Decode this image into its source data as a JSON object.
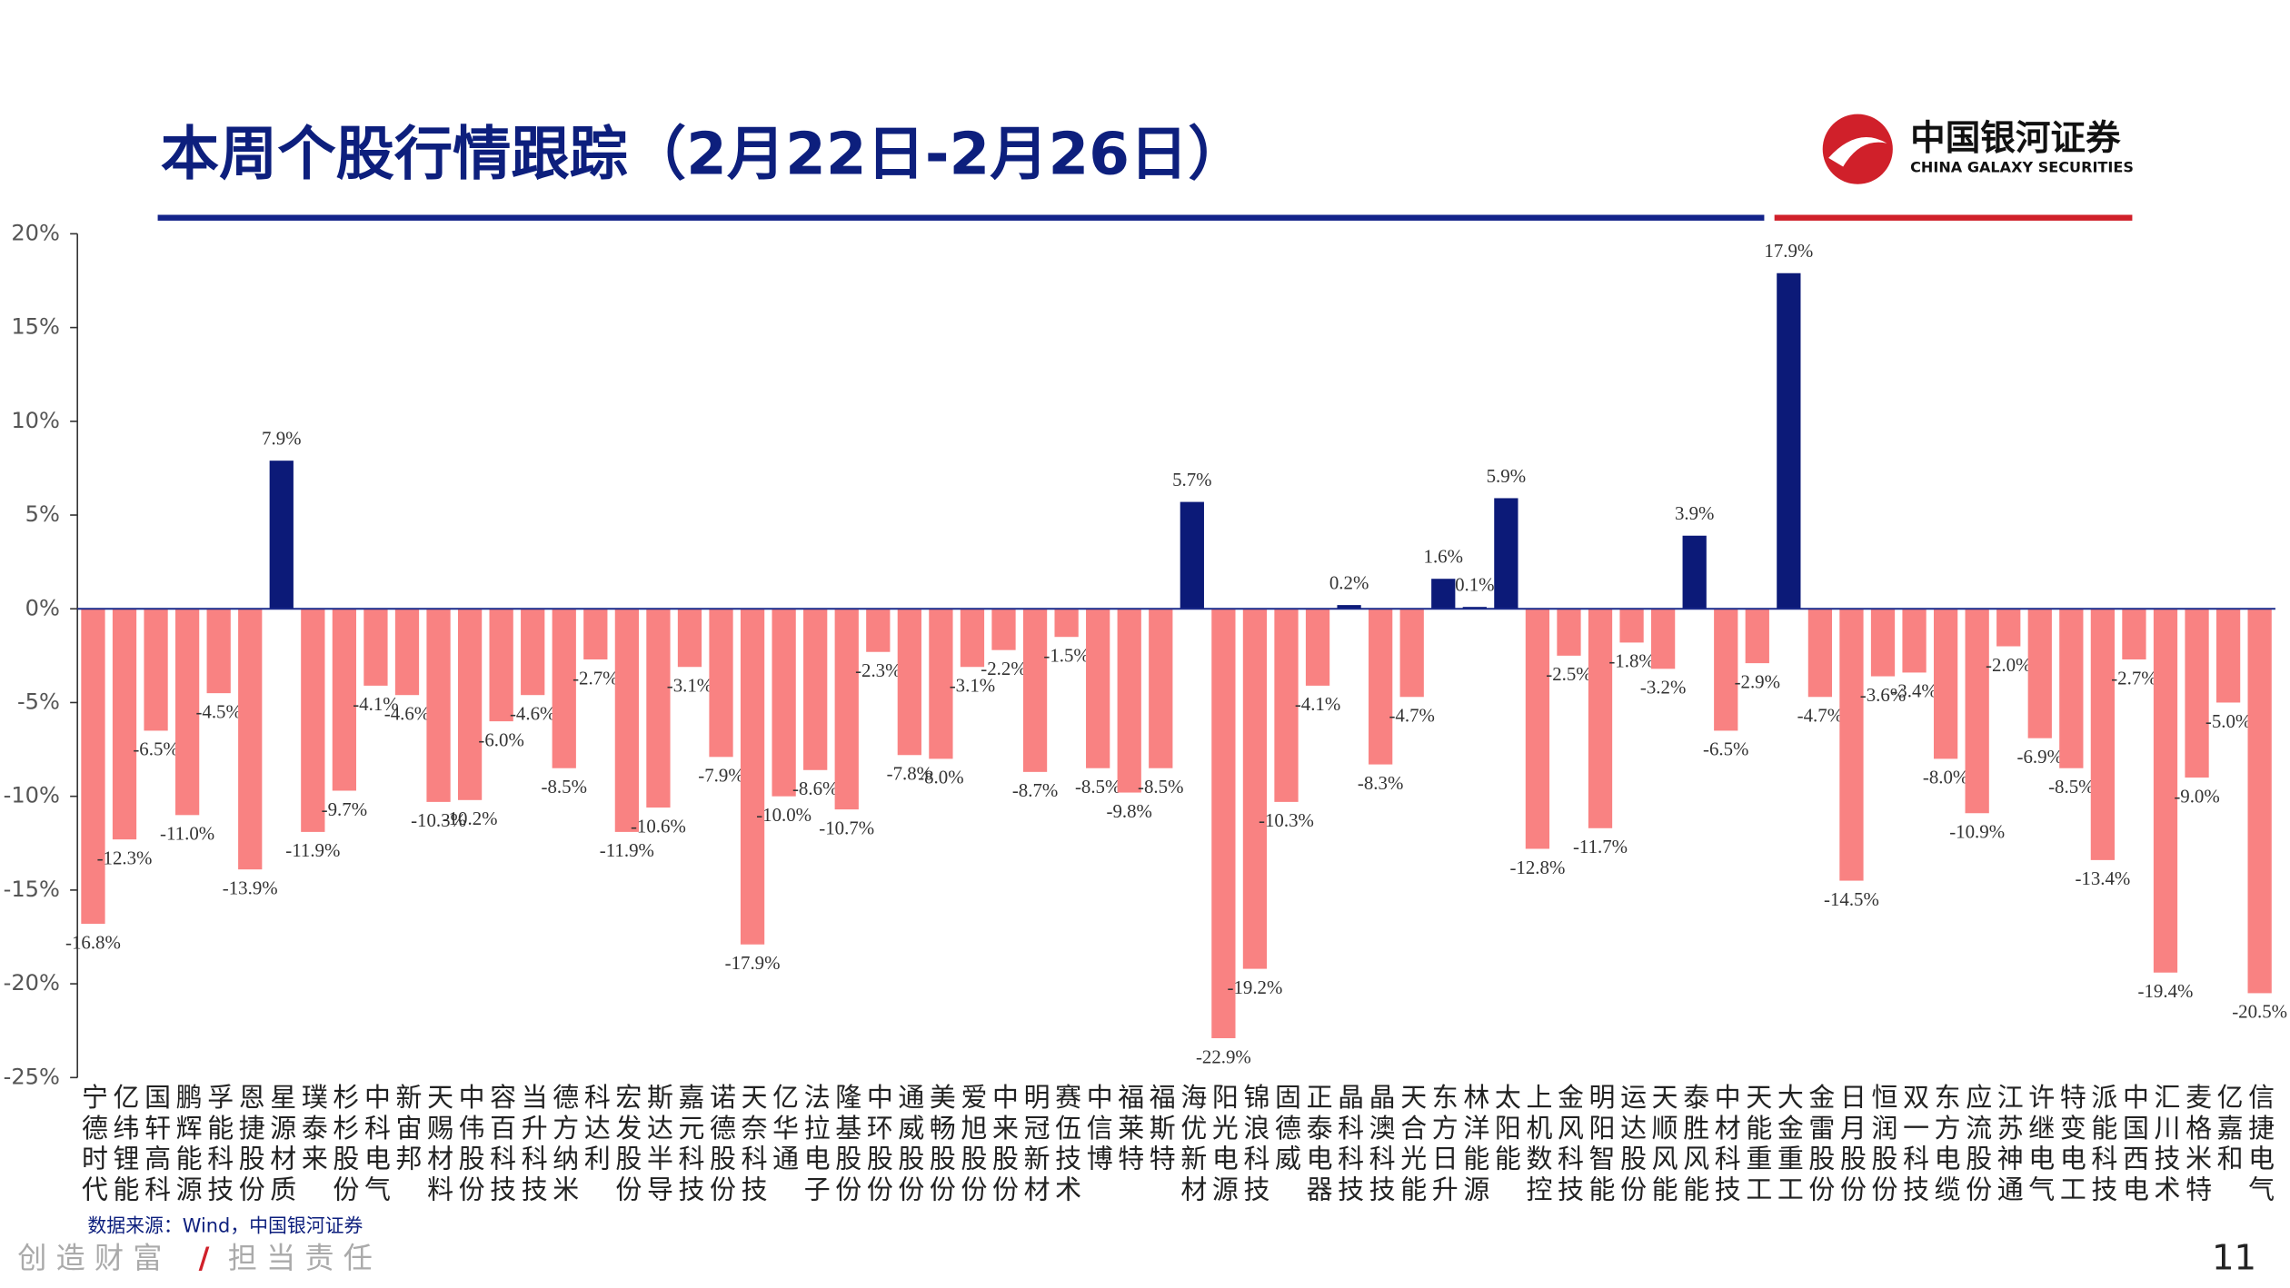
{
  "header": {
    "title": "本周个股行情跟踪（2月22日-2月26日）",
    "logo_cn": "中国银河证券",
    "logo_en": "CHINA GALAXY SECURITIES"
  },
  "chart_data": {
    "type": "bar",
    "categories": [
      "宁德时代",
      "亿纬锂能",
      "国轩高科",
      "鹏辉能源",
      "孚能科技",
      "恩捷股份",
      "星源材质",
      "璞泰来",
      "杉杉股份",
      "中科电气",
      "新宙邦",
      "天赐材料",
      "中伟股份",
      "容百科技",
      "当升科技",
      "德方纳米",
      "科达利",
      "宏发股份",
      "斯达半导",
      "嘉元科技",
      "诺德股份",
      "天奈科技",
      "亿华通",
      "法拉电子",
      "隆基股份",
      "中环股份",
      "通威股份",
      "美畅股份",
      "爱旭股份",
      "中来股份",
      "明冠新材",
      "赛伍技术",
      "中信博",
      "福莱特",
      "福斯特",
      "海优新材",
      "阳光电源",
      "锦浪科技",
      "固德威",
      "正泰电器",
      "晶科科技",
      "晶澳科技",
      "天合光能",
      "东方日升",
      "林洋能源",
      "太阳能",
      "上机数控",
      "金风科技",
      "明阳智能",
      "运达股份",
      "天顺风能",
      "泰胜风能",
      "中材科技",
      "天能重工",
      "大金重工",
      "金雷股份",
      "日月股份",
      "恒润股份",
      "双一科技",
      "东方电缆",
      "应流股份",
      "江苏神通",
      "许继电气",
      "特变电工",
      "派能科技",
      "中国西电",
      "汇川技术",
      "麦格米特",
      "亿嘉和",
      "信捷电气"
    ],
    "values": [
      -16.8,
      -12.3,
      -6.5,
      -11.0,
      -4.5,
      -13.9,
      7.9,
      -11.9,
      -9.7,
      -4.1,
      -4.6,
      -10.3,
      -10.2,
      -6.0,
      -4.6,
      -8.5,
      -2.7,
      -11.9,
      -10.6,
      -3.1,
      -7.9,
      -17.9,
      -10.0,
      -8.6,
      -10.7,
      -2.3,
      -7.8,
      -8.0,
      -3.1,
      -2.2,
      -8.7,
      -1.5,
      -8.5,
      -9.8,
      -8.5,
      5.7,
      -22.9,
      -19.2,
      -10.3,
      -4.1,
      0.2,
      -8.3,
      -4.7,
      1.6,
      0.1,
      5.9,
      -12.8,
      -2.5,
      -11.7,
      -1.8,
      -3.2,
      3.9,
      -6.5,
      -2.9,
      17.9,
      -4.7,
      -14.5,
      -3.6,
      -3.4,
      -8.0,
      -10.9,
      -2.0,
      -6.9,
      -8.5,
      -13.4,
      -2.7,
      -19.4,
      -9.0,
      -5.0,
      -20.5
    ],
    "value_labels": [
      "-16.8%",
      "-12.3%",
      "-6.5%",
      "-11.0%",
      "-4.5%",
      "-13.9%",
      "7.9%",
      "-11.9%",
      "-9.7%",
      "-4.1%",
      "-4.6%",
      "-10.3%",
      "-10.2%",
      "-6.0%",
      "-4.6%",
      "-8.5%",
      "-2.7%",
      "-11.9%",
      "-10.6%",
      "-3.1%",
      "-7.9%",
      "-17.9%",
      "-10.0%",
      "-8.6%",
      "-10.7%",
      "-2.3%",
      "-7.8%",
      "-8.0%",
      "-3.1%",
      "-2.2%",
      "-8.7%",
      "-1.5%",
      "-8.5%",
      "-9.8%",
      "-8.5%",
      "5.7%",
      "-22.9%",
      "-19.2%",
      "-10.3%",
      "-4.1%",
      "0.2%",
      "-8.3%",
      "-4.7%",
      "1.6%",
      "0.1%",
      "5.9%",
      "-12.8%",
      "-2.5%",
      "-11.7%",
      "-1.8%",
      "-3.2%",
      "3.9%",
      "-6.5%",
      "-2.9%",
      "17.9%",
      "-4.7%",
      "-14.5%",
      "-3.6%",
      "-3.4%",
      "-8.0%",
      "-10.9%",
      "-2.0%",
      "-6.9%",
      "-8.5%",
      "-13.4%",
      "-2.7%",
      "-19.4%",
      "-9.0%",
      "-5.0%",
      "-20.5%"
    ],
    "positive_color": "#0c1a78",
    "negative_color": "#f98282",
    "ylim": [
      -25,
      20
    ],
    "yticks": [
      {
        "value": -25,
        "label": "-25%"
      },
      {
        "value": -20,
        "label": "-20%"
      },
      {
        "value": -15,
        "label": "-15%"
      },
      {
        "value": -10,
        "label": "-10%"
      },
      {
        "value": -5,
        "label": "-5%"
      },
      {
        "value": 0,
        "label": "0%"
      },
      {
        "value": 5,
        "label": "5%"
      },
      {
        "value": 10,
        "label": "10%"
      },
      {
        "value": 15,
        "label": "15%"
      },
      {
        "value": 20,
        "label": "20%"
      }
    ]
  },
  "footer": {
    "source": "数据来源：Wind，中国银河证券",
    "slogan_left": "创 造 财 富",
    "slogan_right": "担 当 责 任",
    "page": "11"
  }
}
